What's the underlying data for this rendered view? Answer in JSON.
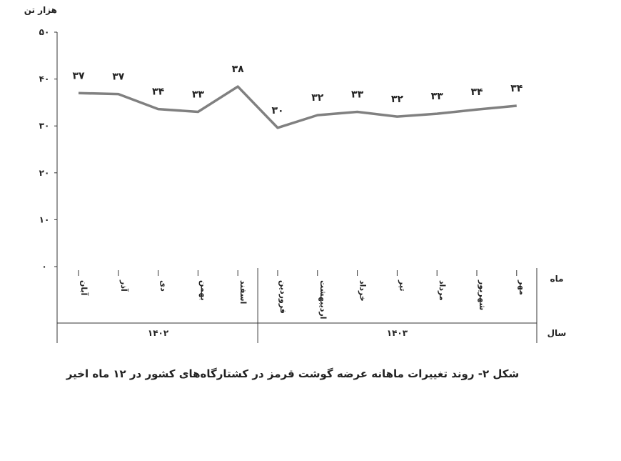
{
  "chart_data": {
    "type": "line",
    "y_label": "هزار تن",
    "x_row_label": "ماه",
    "group_row_label": "سال",
    "caption": "شکل ۲- روند تغییرات ماهانه عرضه گوشت قرمز در کشتارگاه‌های کشور در ۱۲ ماه اخیر",
    "groups": [
      {
        "label": "۱۴۰۲",
        "categories": [
          "آبان",
          "آذر",
          "دی",
          "بهمن",
          "اسفند"
        ]
      },
      {
        "label": "۱۴۰۳",
        "categories": [
          "فروردین",
          "اردیبهشت",
          "خرداد",
          "تیر",
          "مرداد",
          "شهریور",
          "مهر"
        ]
      }
    ],
    "series": [
      {
        "color": "#808080",
        "values": [
          37,
          36.8,
          33.6,
          33,
          38.4,
          29.6,
          32.3,
          33,
          32,
          32.6,
          33.5,
          34.3
        ],
        "value_labels": [
          "۳۷",
          "۳۷",
          "۳۴",
          "۳۳",
          "۳۸",
          "۳۰",
          "۳۲",
          "۳۳",
          "۳۲",
          "۳۳",
          "۳۴",
          "۳۴"
        ]
      }
    ],
    "ylim": [
      0,
      50
    ],
    "yticks": [
      {
        "value": 0,
        "label": "۰"
      },
      {
        "value": 10,
        "label": "۱۰"
      },
      {
        "value": 20,
        "label": "۲۰"
      },
      {
        "value": 30,
        "label": "۳۰"
      },
      {
        "value": 40,
        "label": "۴۰"
      },
      {
        "value": 50,
        "label": "۵۰"
      }
    ]
  }
}
